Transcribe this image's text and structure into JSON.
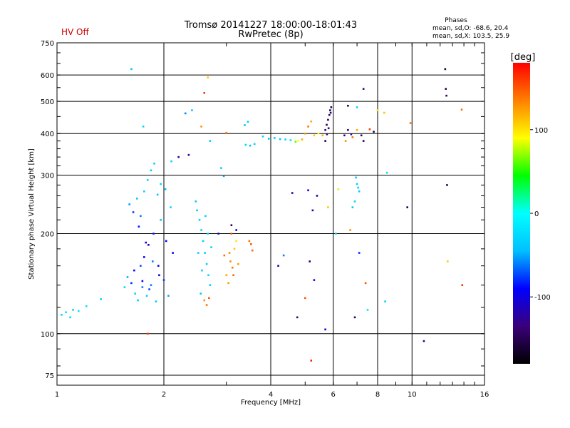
{
  "header": {
    "status": "HV Off",
    "title_line1": "Tromsø 20141227 18:00:00-18:01:43",
    "title_line2": "RwPretec (8p)",
    "phases_title": "Phases",
    "phases_line1": "mean, sd,O: -68.6, 20.4",
    "phases_line2": "mean, sd,X: 103.5, 25.9"
  },
  "colorbar": {
    "unit_label": "[deg]",
    "ticks": [
      {
        "value": 100,
        "label": "100"
      },
      {
        "value": 0,
        "label": "0"
      },
      {
        "value": -100,
        "label": "-100"
      }
    ],
    "range": [
      -180,
      180
    ],
    "colors": [
      "#000000",
      "#3b007a",
      "#0000ff",
      "#00c0ff",
      "#00ffff",
      "#00ff00",
      "#ffff00",
      "#ff8000",
      "#ff0000"
    ]
  },
  "chart_data": {
    "type": "scatter",
    "title": "Tromsø 20141227 18:00:00-18:01:43",
    "subtitle": "RwPretec (8p)",
    "xlabel": "Frequency [MHz]",
    "ylabel": "Stationary phase Virtual Height [km]",
    "xscale": "log",
    "yscale": "log",
    "xlim": [
      1,
      16
    ],
    "ylim": [
      70,
      750
    ],
    "xticks": [
      1,
      2,
      4,
      6,
      8,
      10,
      16
    ],
    "yticks": [
      75,
      100,
      200,
      300,
      400,
      500,
      600,
      750
    ],
    "grid": true,
    "color_variable": "phase [deg]",
    "points": [
      [
        1.03,
        114,
        -30
      ],
      [
        1.06,
        116,
        -20
      ],
      [
        1.09,
        112,
        -25
      ],
      [
        1.11,
        118,
        -30
      ],
      [
        1.15,
        117,
        -20
      ],
      [
        1.21,
        121,
        -20
      ],
      [
        1.33,
        127,
        -30
      ],
      [
        1.55,
        138,
        -25
      ],
      [
        1.58,
        148,
        -50
      ],
      [
        1.62,
        142,
        -80
      ],
      [
        1.65,
        155,
        -90
      ],
      [
        1.66,
        132,
        -30
      ],
      [
        1.69,
        126,
        -35
      ],
      [
        1.72,
        160,
        -70
      ],
      [
        1.74,
        138,
        -60
      ],
      [
        1.76,
        170,
        -95
      ],
      [
        1.79,
        130,
        -30
      ],
      [
        1.81,
        185,
        -110
      ],
      [
        1.84,
        140,
        -60
      ],
      [
        1.87,
        200,
        -85
      ],
      [
        1.9,
        125,
        -35
      ],
      [
        1.93,
        160,
        -100
      ],
      [
        1.96,
        220,
        -40
      ],
      [
        2.0,
        145,
        -75
      ],
      [
        2.03,
        190,
        -95
      ],
      [
        2.06,
        130,
        -50
      ],
      [
        2.09,
        240,
        -30
      ],
      [
        2.12,
        175,
        -90
      ],
      [
        1.6,
        245,
        -55
      ],
      [
        1.64,
        232,
        -75
      ],
      [
        1.68,
        255,
        -40
      ],
      [
        1.72,
        226,
        -60
      ],
      [
        1.76,
        268,
        -30
      ],
      [
        1.8,
        290,
        -28
      ],
      [
        1.84,
        310,
        -32
      ],
      [
        1.88,
        325,
        -35
      ],
      [
        1.92,
        262,
        -40
      ],
      [
        1.96,
        282,
        -30
      ],
      [
        2.02,
        272,
        -45
      ],
      [
        1.7,
        210,
        -85
      ],
      [
        1.78,
        188,
        -100
      ],
      [
        1.86,
        165,
        -60
      ],
      [
        1.94,
        150,
        -110
      ],
      [
        1.82,
        136,
        -75
      ],
      [
        1.74,
        144,
        -95
      ],
      [
        2.46,
        250,
        -35
      ],
      [
        2.48,
        235,
        -40
      ],
      [
        2.52,
        220,
        -30
      ],
      [
        2.55,
        205,
        -30
      ],
      [
        2.58,
        190,
        -35
      ],
      [
        2.61,
        175,
        -30
      ],
      [
        2.64,
        162,
        -35
      ],
      [
        2.67,
        150,
        -30
      ],
      [
        2.7,
        140,
        -35
      ],
      [
        2.62,
        226,
        -30
      ],
      [
        2.5,
        175,
        -32
      ],
      [
        2.56,
        155,
        -35
      ],
      [
        2.66,
        200,
        -30
      ],
      [
        2.54,
        132,
        -40
      ],
      [
        2.72,
        182,
        -30
      ],
      [
        2.6,
        126,
        130
      ],
      [
        2.64,
        122,
        140
      ],
      [
        2.68,
        128,
        150
      ],
      [
        2.96,
        172,
        140
      ],
      [
        3.0,
        150,
        120
      ],
      [
        3.04,
        142,
        125
      ],
      [
        3.08,
        165,
        130
      ],
      [
        3.12,
        158,
        140
      ],
      [
        3.16,
        180,
        110
      ],
      [
        3.2,
        190,
        100
      ],
      [
        3.24,
        162,
        125
      ],
      [
        3.06,
        175,
        130
      ],
      [
        3.14,
        150,
        145
      ],
      [
        3.1,
        200,
        150
      ],
      [
        3.52,
        186,
        150
      ],
      [
        3.55,
        178,
        145
      ],
      [
        3.48,
        190,
        140
      ],
      [
        3.4,
        370,
        -30
      ],
      [
        3.5,
        368,
        -40
      ],
      [
        3.6,
        372,
        -35
      ],
      [
        3.38,
        424,
        -40
      ],
      [
        3.45,
        434,
        -35
      ],
      [
        3.8,
        392,
        -30
      ],
      [
        3.95,
        386,
        -40
      ],
      [
        4.1,
        388,
        -35
      ],
      [
        4.25,
        385,
        -40
      ],
      [
        4.4,
        384,
        -30
      ],
      [
        4.55,
        382,
        -25
      ],
      [
        4.7,
        378,
        60
      ],
      [
        4.78,
        380,
        90
      ],
      [
        4.9,
        384,
        120
      ],
      [
        5.0,
        400,
        130
      ],
      [
        5.1,
        420,
        140
      ],
      [
        5.2,
        435,
        120
      ],
      [
        5.3,
        395,
        110
      ],
      [
        5.45,
        400,
        90
      ],
      [
        5.6,
        395,
        120
      ],
      [
        5.7,
        410,
        -140
      ],
      [
        5.75,
        425,
        -145
      ],
      [
        5.8,
        440,
        -150
      ],
      [
        5.85,
        455,
        -140
      ],
      [
        5.88,
        470,
        -145
      ],
      [
        5.92,
        480,
        -150
      ],
      [
        5.76,
        398,
        -145
      ],
      [
        5.82,
        415,
        -140
      ],
      [
        5.7,
        380,
        -150
      ],
      [
        5.9,
        462,
        -145
      ],
      [
        6.45,
        395,
        -130
      ],
      [
        6.6,
        410,
        -140
      ],
      [
        6.74,
        398,
        -120
      ],
      [
        6.5,
        380,
        130
      ],
      [
        6.8,
        390,
        140
      ],
      [
        7.0,
        410,
        120
      ],
      [
        7.2,
        395,
        -140
      ],
      [
        7.3,
        380,
        -150
      ],
      [
        7.6,
        412,
        160
      ],
      [
        7.8,
        405,
        -160
      ],
      [
        6.95,
        295,
        -40
      ],
      [
        7.0,
        282,
        -35
      ],
      [
        7.05,
        275,
        -30
      ],
      [
        7.1,
        268,
        -35
      ],
      [
        6.9,
        250,
        -30
      ],
      [
        6.8,
        240,
        -40
      ],
      [
        4.6,
        265,
        -120
      ],
      [
        5.4,
        260,
        -110
      ],
      [
        5.1,
        270,
        -100
      ],
      [
        5.25,
        235,
        -110
      ],
      [
        6.2,
        272,
        80
      ],
      [
        5.8,
        240,
        110
      ],
      [
        6.6,
        485,
        -150
      ],
      [
        7.0,
        480,
        -30
      ],
      [
        7.3,
        545,
        -130
      ],
      [
        8.0,
        470,
        100
      ],
      [
        8.35,
        462,
        110
      ],
      [
        8.5,
        305,
        -20
      ],
      [
        9.7,
        240,
        -150
      ],
      [
        9.9,
        430,
        140
      ],
      [
        10.8,
        95,
        -130
      ],
      [
        12.4,
        625,
        -160
      ],
      [
        12.45,
        545,
        -150
      ],
      [
        12.5,
        520,
        -140
      ],
      [
        12.55,
        280,
        -150
      ],
      [
        12.6,
        165,
        110
      ],
      [
        13.8,
        472,
        140
      ],
      [
        13.85,
        140,
        160
      ],
      [
        4.2,
        160,
        -110
      ],
      [
        4.35,
        172,
        -60
      ],
      [
        4.75,
        112,
        -140
      ],
      [
        5.0,
        128,
        150
      ],
      [
        5.15,
        165,
        -140
      ],
      [
        5.3,
        145,
        -100
      ],
      [
        5.2,
        83,
        170
      ],
      [
        5.7,
        103,
        -100
      ],
      [
        6.1,
        200,
        -30
      ],
      [
        6.7,
        205,
        130
      ],
      [
        6.9,
        112,
        -150
      ],
      [
        7.1,
        175,
        -80
      ],
      [
        7.4,
        142,
        150
      ],
      [
        7.5,
        118,
        -20
      ],
      [
        8.4,
        125,
        -30
      ],
      [
        2.7,
        380,
        -40
      ],
      [
        2.35,
        345,
        -120
      ],
      [
        2.2,
        340,
        -130
      ],
      [
        2.3,
        460,
        -60
      ],
      [
        2.4,
        470,
        -40
      ],
      [
        2.55,
        420,
        130
      ],
      [
        2.6,
        530,
        160
      ],
      [
        2.66,
        590,
        110
      ],
      [
        1.8,
        100,
        160
      ],
      [
        1.62,
        625,
        -40
      ],
      [
        1.75,
        420,
        -30
      ],
      [
        2.1,
        330,
        -30
      ],
      [
        2.9,
        315,
        -35
      ],
      [
        2.95,
        298,
        -50
      ],
      [
        3.1,
        212,
        -150
      ],
      [
        3.2,
        205,
        -100
      ],
      [
        2.85,
        200,
        -110
      ],
      [
        3.0,
        402,
        140
      ]
    ]
  }
}
